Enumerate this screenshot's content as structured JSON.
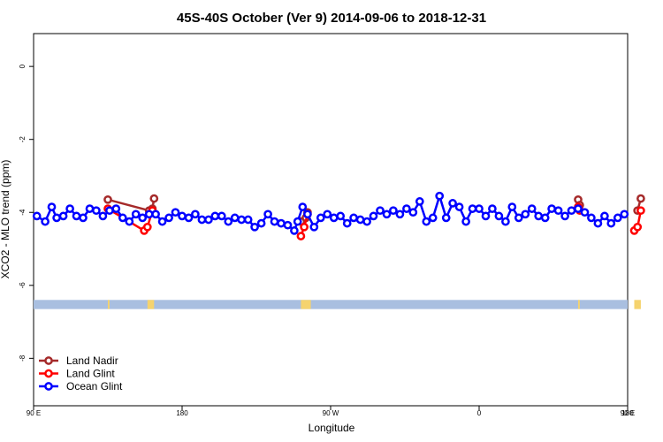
{
  "chart_data": {
    "type": "line",
    "title": "45S-40S October (Ver 9)   2014-09-06 to 2018-12-31",
    "xlabel": "Longitude",
    "ylabel": "XCO2 - MLO trend (ppm)",
    "xlim": [
      90,
      450
    ],
    "ylim": [
      -9.3,
      0.9
    ],
    "x_ticks": [
      {
        "value": 90,
        "label": "90 E"
      },
      {
        "value": 180,
        "label": "180"
      },
      {
        "value": 270,
        "label": "90 W"
      },
      {
        "value": 360,
        "label": "0"
      },
      {
        "value": 450,
        "label": "90 E"
      },
      {
        "value": 540,
        "label": "180"
      }
    ],
    "y_ticks": [
      {
        "value": 0,
        "label": "0"
      },
      {
        "value": -2,
        "label": "-2"
      },
      {
        "value": -4,
        "label": "-4"
      },
      {
        "value": -6,
        "label": "-6"
      },
      {
        "value": -8,
        "label": "-8"
      }
    ],
    "legend_position": "bottom-left",
    "land_band": {
      "y_top": -6.4,
      "y_bottom": -6.65,
      "ocean_color": "#a9bfe0",
      "land_color": "#f5d36e",
      "land_x": [
        [
          135,
          136
        ],
        [
          159,
          163
        ],
        [
          252,
          258
        ],
        [
          420,
          421
        ],
        [
          454,
          458
        ]
      ]
    },
    "series": [
      {
        "name": "Land Nadir",
        "color": "#a52a2a",
        "segments": [
          {
            "x": [
              135,
              160,
              162,
              163
            ],
            "y": [
              -3.65,
              -3.95,
              -3.9,
              -3.62
            ]
          },
          {
            "x": [
              252,
              255,
              256
            ],
            "y": [
              -4.25,
              -4.15,
              -4.0
            ]
          },
          {
            "x": [
              420,
              421
            ],
            "y": [
              -3.65,
              -3.8
            ]
          },
          {
            "x": [
              456,
              458
            ],
            "y": [
              -3.95,
              -3.62
            ]
          }
        ]
      },
      {
        "name": "Land Glint",
        "color": "#ff0000",
        "segments": [
          {
            "x": [
              135,
              157,
              159,
              162
            ],
            "y": [
              -3.9,
              -4.5,
              -4.4,
              -3.95
            ]
          },
          {
            "x": [
              252,
              254,
              256
            ],
            "y": [
              -4.65,
              -4.4,
              -4.05
            ]
          },
          {
            "x": [
              420,
              421
            ],
            "y": [
              -3.85,
              -3.95
            ]
          },
          {
            "x": [
              454,
              456,
              458
            ],
            "y": [
              -4.5,
              -4.4,
              -3.95
            ]
          }
        ]
      },
      {
        "name": "Ocean Glint",
        "color": "#0000ff",
        "segments": [
          {
            "x": [
              92,
              97,
              101,
              104,
              108,
              112,
              116,
              120,
              124,
              128,
              132,
              136,
              140,
              144,
              148,
              152,
              156,
              160,
              164,
              168,
              172,
              176,
              180,
              184,
              188,
              192,
              196,
              200,
              204,
              208,
              212,
              216,
              220,
              224,
              228,
              232,
              236,
              240,
              244,
              248,
              250,
              253,
              256,
              260,
              264,
              268,
              272,
              276,
              280,
              284,
              288,
              292,
              296,
              300,
              304,
              308,
              312,
              316,
              320,
              324,
              328,
              332,
              336,
              340,
              344,
              348,
              352,
              356,
              360,
              364,
              368,
              372,
              376,
              380,
              384,
              388,
              392,
              396,
              400,
              404,
              408,
              412,
              416,
              420,
              424,
              428,
              432,
              436,
              440,
              444,
              448
            ],
            "y": [
              -4.1,
              -4.25,
              -3.85,
              -4.15,
              -4.1,
              -3.9,
              -4.1,
              -4.15,
              -3.9,
              -3.95,
              -4.1,
              -3.95,
              -3.9,
              -4.15,
              -4.25,
              -4.05,
              -4.15,
              -4.05,
              -4.05,
              -4.25,
              -4.15,
              -4.0,
              -4.1,
              -4.15,
              -4.05,
              -4.2,
              -4.2,
              -4.1,
              -4.1,
              -4.25,
              -4.15,
              -4.2,
              -4.2,
              -4.4,
              -4.3,
              -4.05,
              -4.25,
              -4.3,
              -4.35,
              -4.5,
              -4.25,
              -3.85,
              -4.05,
              -4.4,
              -4.15,
              -4.05,
              -4.15,
              -4.1,
              -4.3,
              -4.15,
              -4.2,
              -4.25,
              -4.1,
              -3.95,
              -4.05,
              -3.95,
              -4.05,
              -3.9,
              -4.0,
              -3.7,
              -4.25,
              -4.15,
              -3.55,
              -4.15,
              -3.75,
              -3.85,
              -4.25,
              -3.9,
              -3.9,
              -4.1,
              -3.9,
              -4.1,
              -4.25,
              -3.85,
              -4.15,
              -4.05,
              -3.9,
              -4.1,
              -4.15,
              -3.9,
              -3.95,
              -4.1,
              -3.95,
              -3.9,
              -4.0,
              -4.15,
              -4.3,
              -4.1,
              -4.3,
              -4.15,
              -4.05
            ]
          }
        ]
      }
    ]
  }
}
